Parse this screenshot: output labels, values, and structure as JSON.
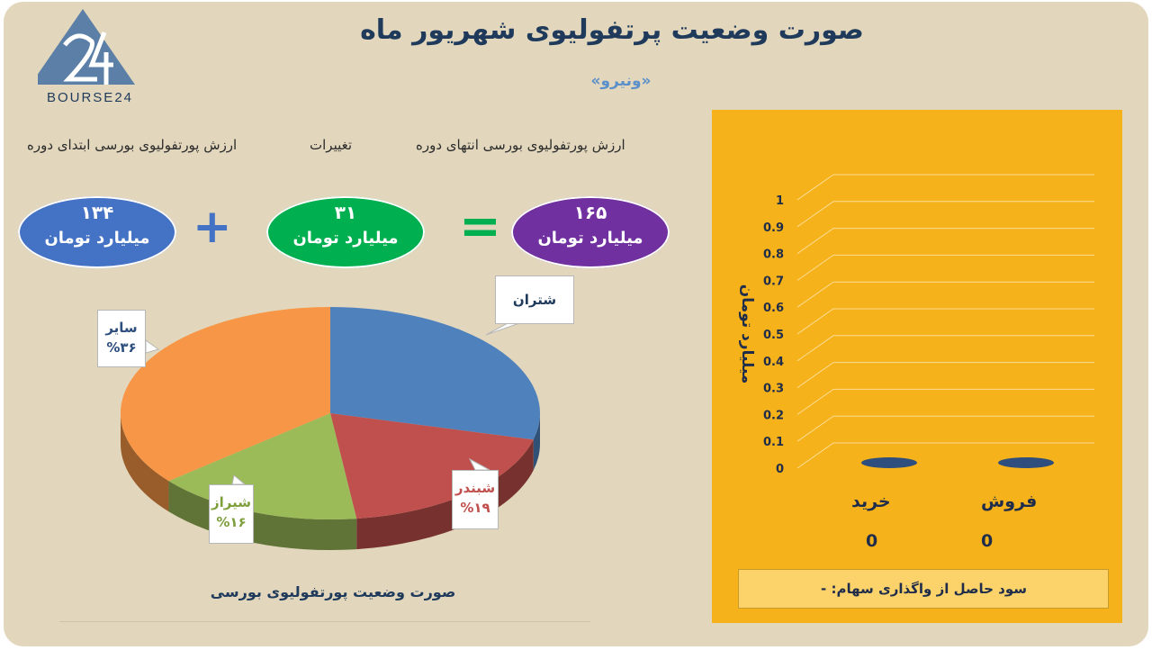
{
  "logo": {
    "numeral": "24",
    "text": "BOURSE24"
  },
  "header": {
    "title": "صورت وضعیت پرتفولیوی شهریور ماه",
    "subtitle": "«ونیرو»"
  },
  "summary": {
    "end_label": "ارزش پورتفولیوی بورسی انتهای دوره",
    "change_label": "تغییرات",
    "start_label": "ارزش پورتفولیوی بورسی ابتدای دوره",
    "end_value": "۱۶۵",
    "change_value": "۳۱",
    "start_value": "۱۳۴",
    "unit": "میلیارد تومان",
    "end_color": "#7030a0",
    "change_color": "#00b050",
    "start_color": "#4472c4",
    "equals_symbol": "=",
    "plus_symbol": "+"
  },
  "pie": {
    "caption": "صورت وضعیت پورتفولیوی بورسی"
  },
  "chart_data": [
    {
      "type": "pie",
      "title": "صورت وضعیت پورتفولیوی بورسی",
      "slices": [
        {
          "label": "شتران",
          "value": 29,
          "percent_text": "",
          "color": "#4f81bd"
        },
        {
          "label": "شبندر",
          "value": 19,
          "percent_text": "%۱۹",
          "color": "#c0504d"
        },
        {
          "label": "شیراز",
          "value": 16,
          "percent_text": "%۱۶",
          "color": "#9bbb59"
        },
        {
          "label": "سایر",
          "value": 36,
          "percent_text": "%۳۶",
          "color": "#f79646"
        }
      ]
    },
    {
      "type": "bar",
      "categories": [
        "خرید",
        "فروش"
      ],
      "values": [
        0,
        0
      ],
      "value_labels": [
        "0",
        "0"
      ],
      "ylabel": "میلیارد تومان",
      "ylim": [
        0,
        1
      ],
      "ytick_labels": [
        "0",
        "0.1",
        "0.2",
        "0.3",
        "0.4",
        "0.5",
        "0.6",
        "0.7",
        "0.8",
        "0.9",
        "1"
      ],
      "grid": true,
      "bar_color": "#2e4e7e",
      "panel_color": "#f6b21a"
    }
  ],
  "profit": {
    "text": "سود حاصل از واگذاری سهام: -"
  }
}
